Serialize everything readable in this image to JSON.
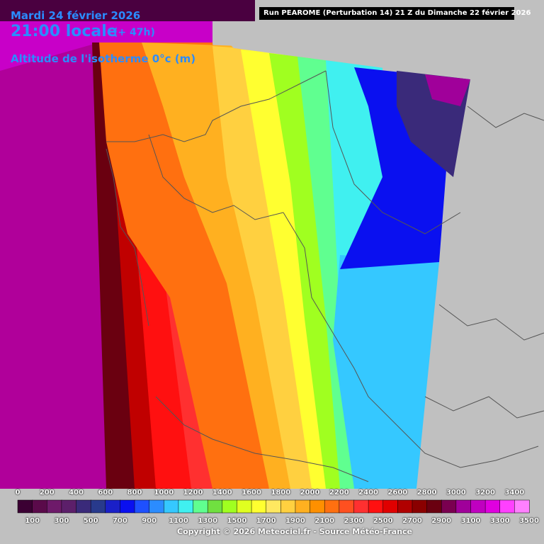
{
  "header": {
    "date": "Mardi 24 février 2026",
    "local_time": "21:00 locale",
    "offset": "(+ 47h)",
    "variable": "Altitude de l'isotherme 0°c (m)",
    "run_info": "Run PEAROME (Perturbation 14) 21 Z du Dimanche 22 février 2026"
  },
  "legend": {
    "top_labels": [
      "0",
      "200",
      "400",
      "600",
      "800",
      "1000",
      "1200",
      "1400",
      "1600",
      "1800",
      "2000",
      "2200",
      "2400",
      "2600",
      "2800",
      "3000",
      "3200",
      "3400"
    ],
    "bottom_labels": [
      "100",
      "300",
      "500",
      "700",
      "900",
      "1100",
      "1300",
      "1500",
      "1700",
      "1900",
      "2100",
      "2300",
      "2500",
      "2700",
      "2900",
      "3100",
      "3300",
      "3500"
    ],
    "colors": [
      "#3b0033",
      "#5a0a4a",
      "#6e1a6a",
      "#5c1f6a",
      "#3a2a7a",
      "#283a8c",
      "#1a20c8",
      "#0a10f0",
      "#1e50ff",
      "#2b8cff",
      "#35c8ff",
      "#40f0f0",
      "#60ff90",
      "#70e040",
      "#a0ff20",
      "#e0ff20",
      "#ffff30",
      "#ffe860",
      "#ffd040",
      "#ffb020",
      "#ff9000",
      "#ff7010",
      "#ff5020",
      "#ff3030",
      "#ff1010",
      "#e00000",
      "#b00000",
      "#8a0000",
      "#6a0010",
      "#7a0050",
      "#a0009a",
      "#c000c0",
      "#e000e0",
      "#ff40ff",
      "#ff80ff"
    ]
  },
  "copyright": "Copyright © 2026 Meteociel.fr - Source Météo-France",
  "map": {
    "background_gray": "#c0c0c0",
    "west_magenta": "#c800c8",
    "zones_west_to_east": [
      "#b0009a",
      "#6a0010",
      "#c00000",
      "#ff1010",
      "#ff3030",
      "#ff7010",
      "#ffb020",
      "#ffd040",
      "#ffff30",
      "#a0ff20",
      "#60ff90",
      "#40f0f0",
      "#35c8ff",
      "#0a10f0",
      "#3a2a7a"
    ]
  }
}
